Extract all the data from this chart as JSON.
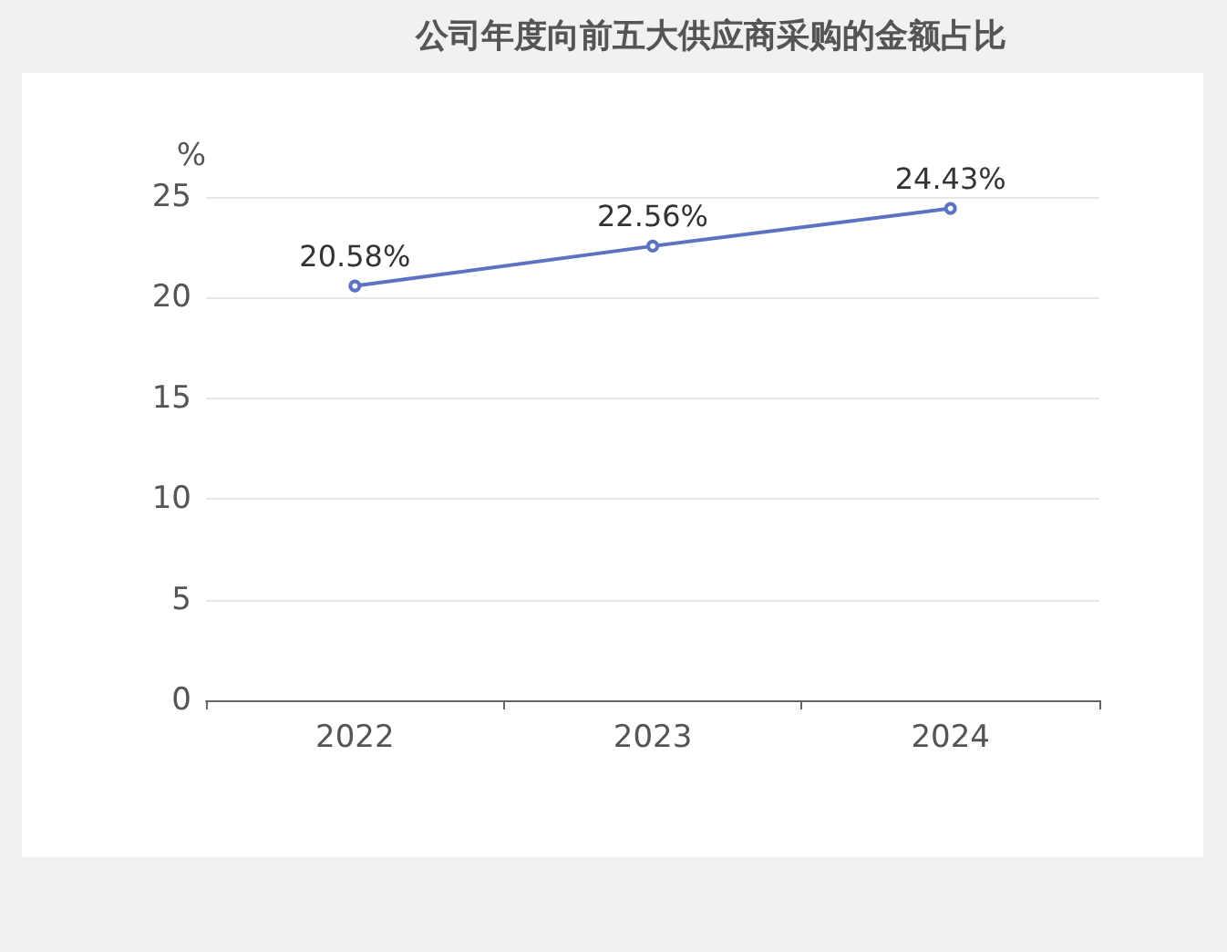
{
  "chart_data": {
    "type": "line",
    "title": "公司年度向前五大供应商采购的金额占比",
    "ylabel": "%",
    "categories": [
      "2022",
      "2023",
      "2024"
    ],
    "series": [
      {
        "color": "#5b73c0",
        "values": [
          20.58,
          22.56,
          24.43
        ],
        "value_labels": [
          "20.58%",
          "22.56%",
          "24.43%"
        ]
      }
    ],
    "ylim": [
      0,
      25
    ],
    "yticks": [
      0,
      5,
      10,
      15,
      20,
      25
    ],
    "grid": "y",
    "marker": "circle",
    "line_style": "solid"
  }
}
